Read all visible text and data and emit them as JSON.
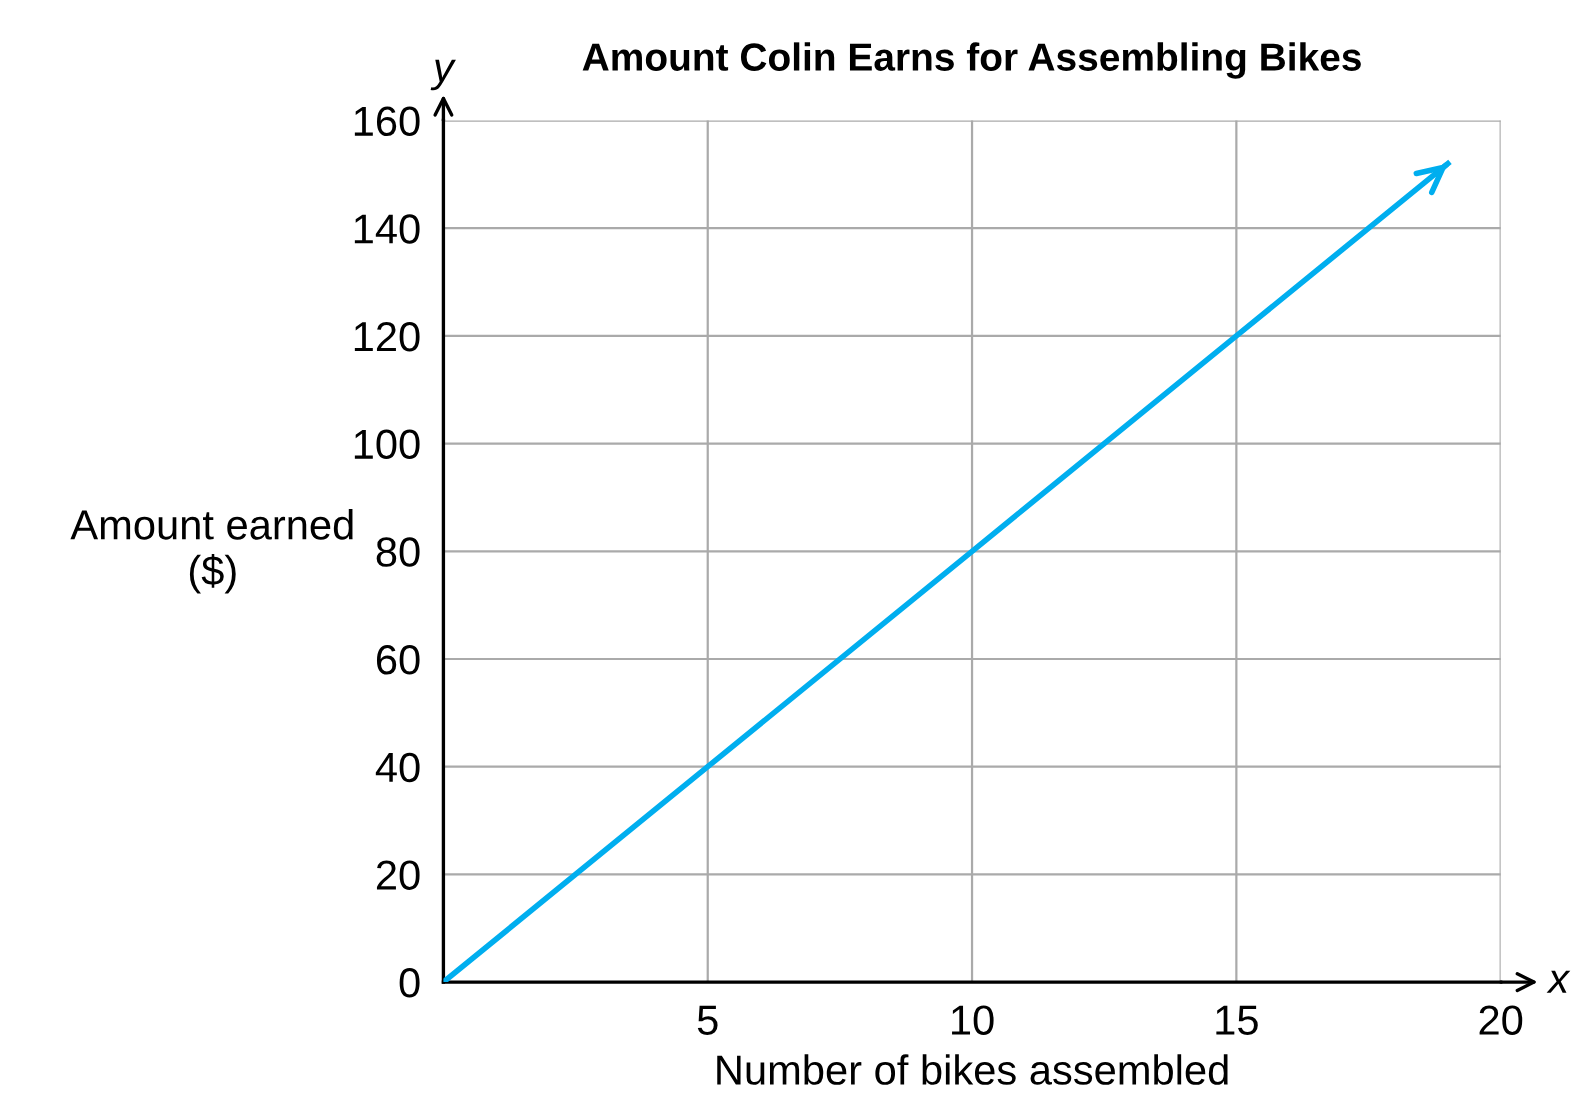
{
  "chart_data": {
    "type": "line",
    "title": "Amount Colin Earns for Assembling Bikes",
    "xlabel": "Number of bikes assembled",
    "ylabel": "Amount earned\n($)",
    "series": [
      {
        "color": "#00aeef",
        "x": [
          0,
          5,
          10,
          15,
          19
        ],
        "values": [
          0,
          40,
          80,
          120,
          152
        ]
      }
    ],
    "xlim": [
      0,
      20
    ],
    "xticks": [
      {
        "value": 0,
        "label": null
      },
      5,
      10,
      15,
      20
    ],
    "ylim": [
      0,
      160
    ],
    "yticks": [
      0,
      20,
      40,
      60,
      80,
      100,
      120,
      140,
      160
    ],
    "grid": true,
    "marker": "none",
    "line_style": "solid",
    "annotations": [
      "x",
      "y"
    ]
  }
}
